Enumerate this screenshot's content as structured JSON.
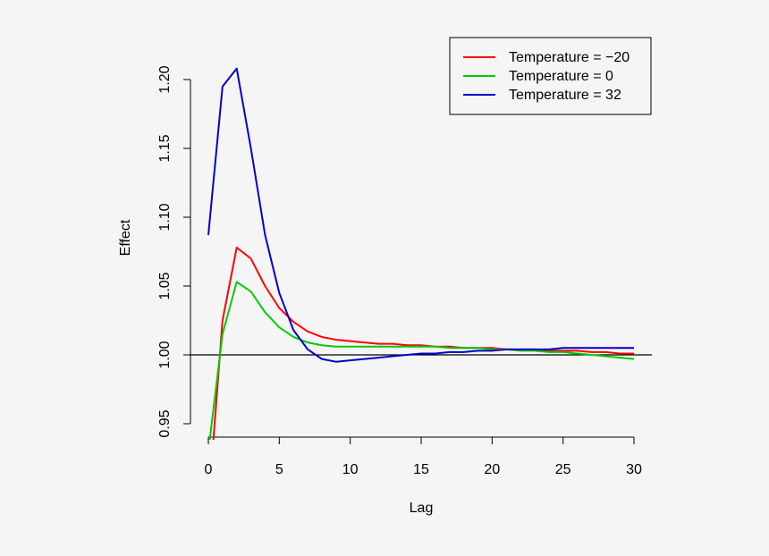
{
  "chart_data": {
    "type": "line",
    "title": "",
    "xlabel": "Lag",
    "ylabel": "Effect",
    "xlim": [
      0,
      30
    ],
    "ylim": [
      0.93,
      1.21
    ],
    "xticks": [
      "0",
      "5",
      "10",
      "15",
      "20",
      "25",
      "30"
    ],
    "yticks": [
      "0.95",
      "1.00",
      "1.05",
      "1.10",
      "1.15",
      "1.20"
    ],
    "reference_line": 1.0,
    "grid": false,
    "legend_position": "top-right",
    "x": [
      0,
      1,
      2,
      3,
      4,
      5,
      6,
      7,
      8,
      9,
      10,
      11,
      12,
      13,
      14,
      15,
      16,
      17,
      18,
      19,
      20,
      21,
      22,
      23,
      24,
      25,
      26,
      27,
      28,
      29,
      30
    ],
    "series": [
      {
        "name": "Temperature = −20",
        "color": "#ff0000",
        "values": [
          0.89,
          1.025,
          1.078,
          1.07,
          1.05,
          1.034,
          1.024,
          1.017,
          1.013,
          1.011,
          1.01,
          1.009,
          1.008,
          1.008,
          1.007,
          1.007,
          1.006,
          1.006,
          1.005,
          1.005,
          1.005,
          1.004,
          1.004,
          1.004,
          1.003,
          1.003,
          1.003,
          1.002,
          1.002,
          1.001,
          1.001
        ]
      },
      {
        "name": "Temperature = 0",
        "color": "#00cc00",
        "values": [
          0.93,
          1.015,
          1.053,
          1.046,
          1.031,
          1.02,
          1.013,
          1.009,
          1.007,
          1.006,
          1.006,
          1.006,
          1.006,
          1.006,
          1.006,
          1.006,
          1.006,
          1.005,
          1.005,
          1.005,
          1.004,
          1.004,
          1.003,
          1.003,
          1.002,
          1.002,
          1.001,
          1.0,
          0.999,
          0.998,
          0.997
        ]
      },
      {
        "name": "Temperature = 32",
        "color": "#0000cc",
        "values": [
          1.087,
          1.195,
          1.208,
          1.15,
          1.087,
          1.045,
          1.018,
          1.004,
          0.997,
          0.995,
          0.996,
          0.997,
          0.998,
          0.999,
          1.0,
          1.001,
          1.001,
          1.002,
          1.002,
          1.003,
          1.003,
          1.004,
          1.004,
          1.004,
          1.004,
          1.005,
          1.005,
          1.005,
          1.005,
          1.005,
          1.005
        ]
      }
    ]
  }
}
